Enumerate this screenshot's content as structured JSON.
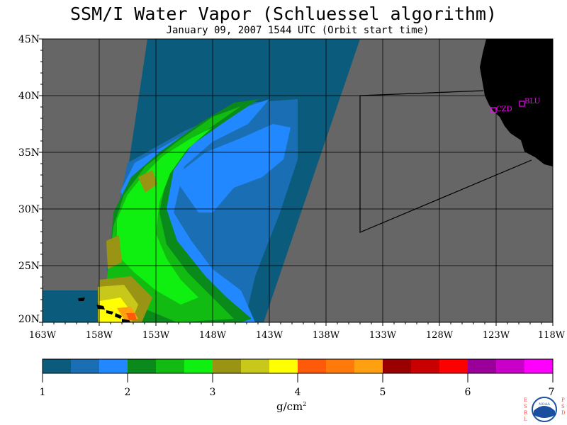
{
  "title": "SSM/I Water Vapor (Schluessel algorithm)",
  "subtitle": "January 09, 2007  1544 UTC  (Orbit start time)",
  "lat_labels": [
    "45N",
    "40N",
    "35N",
    "30N",
    "25N",
    "20N"
  ],
  "lon_labels": [
    "163W",
    "158W",
    "153W",
    "148W",
    "143W",
    "138W",
    "133W",
    "128W",
    "123W",
    "118W"
  ],
  "stations": [
    {
      "name": "CZD"
    },
    {
      "name": "BLU"
    }
  ],
  "colorbar": {
    "colors": [
      "#0a5b7c",
      "#1a6fb4",
      "#2288ff",
      "#0a8a1a",
      "#12bb12",
      "#10f010",
      "#999414",
      "#c8c81a",
      "#ffff00",
      "#ff5a0a",
      "#ff7a0a",
      "#ffa010",
      "#9a0000",
      "#c80000",
      "#ff0000",
      "#9a0099",
      "#c800c8",
      "#ff00ff"
    ],
    "tick_labels": [
      "1",
      "2",
      "3",
      "4",
      "5",
      "6",
      "7"
    ],
    "unit": "g/cm",
    "unit_exp": "2"
  },
  "logo": {
    "left_text": "ESRL",
    "right_text": "PSD",
    "center_text": "NOAA"
  },
  "colors": {
    "land": "#000000",
    "no_data": "#666666",
    "station_marker": "#ff00ff"
  }
}
